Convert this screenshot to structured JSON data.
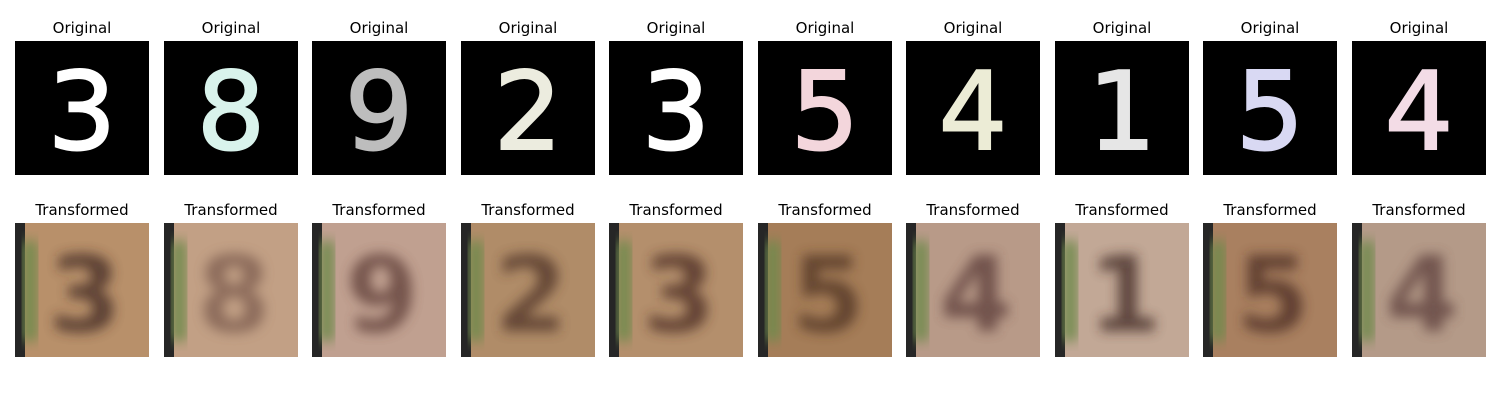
{
  "rows": [
    {
      "key": "original",
      "titles": [
        "Original",
        "Original",
        "Original",
        "Original",
        "Original",
        "Original",
        "Original",
        "Original",
        "Original",
        "Original"
      ],
      "digits": [
        "3",
        "8",
        "9",
        "2",
        "3",
        "5",
        "4",
        "1",
        "5",
        "4"
      ],
      "ink_colors": [
        "#ffffff",
        "#d9f3ec",
        "#bdbdbd",
        "#ececdf",
        "#ffffff",
        "#f3d6dc",
        "#ececd6",
        "#e6e6e6",
        "#d9d9f3",
        "#f3dce6"
      ]
    },
    {
      "key": "transformed",
      "titles": [
        "Transformed",
        "Transformed",
        "Transformed",
        "Transformed",
        "Transformed",
        "Transformed",
        "Transformed",
        "Transformed",
        "Transformed",
        "Transformed"
      ],
      "digits": [
        "3",
        "8",
        "9",
        "2",
        "3",
        "5",
        "4",
        "1",
        "5",
        "4"
      ],
      "bg_colors": [
        "#b8906a",
        "#c2a085",
        "#c0a090",
        "#b08c68",
        "#b48f6c",
        "#a57d58",
        "#b89a88",
        "#c2a896",
        "#a98060",
        "#b49a88"
      ],
      "ink_colors": [
        "#3e2520",
        "#7a5a4d",
        "#5b3b36",
        "#4d3026",
        "#4a2c24",
        "#4d3022",
        "#5a3b38",
        "#3e2620",
        "#4a2c22",
        "#5c3d3a"
      ]
    }
  ]
}
